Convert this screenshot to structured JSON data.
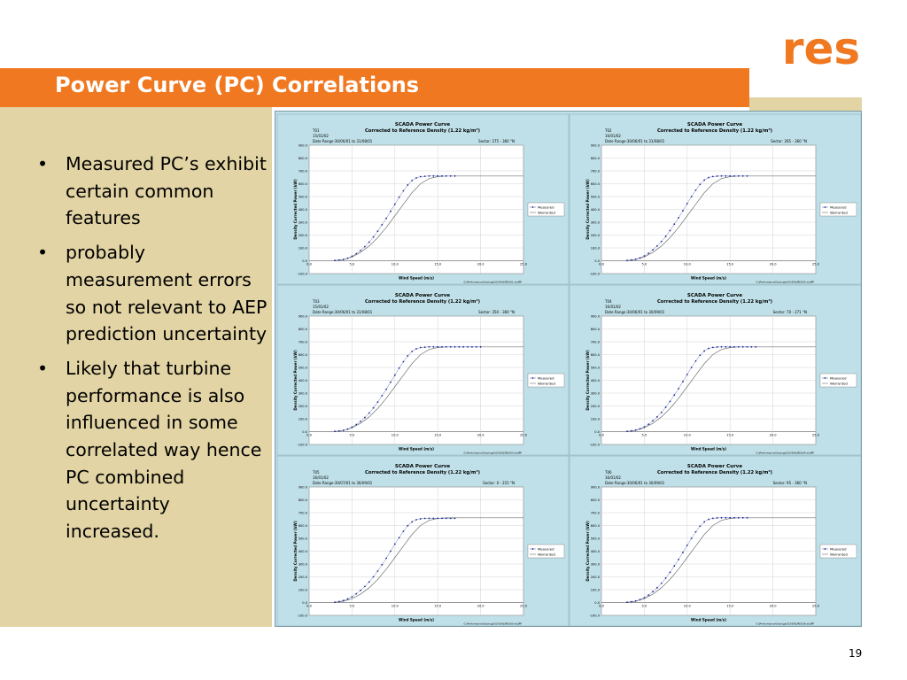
{
  "slide": {
    "title": "Power Curve (PC) Correlations",
    "page_number": "19",
    "logo_text": "res",
    "bullets": [
      "Measured PC’s exhibit certain common features",
      "probably measurement errors so not relevant to AEP prediction uncertainty",
      "Likely that turbine performance is also influenced in some correlated way hence PC combined uncertainty increased."
    ],
    "colors": {
      "accent": "#f07820",
      "tan": "#e2d4a4",
      "panel": "#bfe0e8",
      "plot_bg": "#ffffff"
    }
  },
  "chart_data": [
    {
      "type": "line",
      "title": "SCADA Power Curve",
      "subtitle": "Corrected to Reference Density (1.22 kg/m³)",
      "turbine": "T01",
      "date": "15/01/02",
      "date_range": "Date Range:30/06/01 to 31/08/01",
      "sector": "Sector: 275 - 360 °N",
      "xlabel": "Wind Speed (m/s)",
      "ylabel": "Density Corrected Power (kW)",
      "xlim": [
        0,
        25
      ],
      "ylim": [
        -100,
        900
      ],
      "xticks": [
        "0.0",
        "5.0",
        "10.0",
        "15.0",
        "20.0",
        "25.0"
      ],
      "yticks": [
        "-100.0",
        "0.0",
        "100.0",
        "200.0",
        "300.0",
        "400.0",
        "500.0",
        "600.0",
        "700.0",
        "800.0",
        "900.0"
      ],
      "legend": [
        "Measured",
        "Warranted"
      ],
      "footer": "G:\\Performance\\Savings\\SCADA\\[IRIS\\01-xls]PP",
      "series": [
        {
          "name": "Measured",
          "x": [
            3,
            3.5,
            4,
            4.5,
            5,
            5.5,
            6,
            6.5,
            7,
            7.5,
            8,
            8.5,
            9,
            9.5,
            10,
            10.5,
            11,
            11.5,
            12,
            12.5,
            13,
            13.5,
            14,
            14.5,
            15,
            15.5,
            16,
            16.5,
            17
          ],
          "y": [
            2,
            5,
            10,
            20,
            35,
            55,
            80,
            110,
            145,
            185,
            230,
            280,
            330,
            385,
            440,
            495,
            545,
            590,
            625,
            645,
            655,
            658,
            660,
            660,
            660,
            660,
            660,
            660,
            660
          ]
        },
        {
          "name": "Warranted",
          "x": [
            3,
            4,
            5,
            6,
            7,
            8,
            9,
            10,
            11,
            12,
            13,
            14,
            15,
            16,
            17,
            18,
            19,
            20,
            21,
            22,
            23,
            24,
            25
          ],
          "y": [
            0,
            10,
            30,
            65,
            115,
            180,
            260,
            350,
            440,
            530,
            600,
            640,
            655,
            660,
            660,
            660,
            660,
            660,
            660,
            660,
            660,
            660,
            660
          ]
        }
      ]
    },
    {
      "type": "line",
      "title": "SCADA Power Curve",
      "subtitle": "Corrected to Reference Density (1.22 kg/m³)",
      "turbine": "T02",
      "date": "16/01/02",
      "date_range": "Date Range:30/06/01 to 31/08/01",
      "sector": "Sector: 265 - 360 °N",
      "xlabel": "Wind Speed (m/s)",
      "ylabel": "Density Corrected Power (kW)",
      "xlim": [
        0,
        25
      ],
      "ylim": [
        -100,
        900
      ],
      "xticks": [
        "0.0",
        "5.0",
        "10.0",
        "15.0",
        "20.0",
        "25.0"
      ],
      "yticks": [
        "-100.0",
        "0.0",
        "100.0",
        "200.0",
        "300.0",
        "400.0",
        "500.0",
        "600.0",
        "700.0",
        "800.0",
        "900.0"
      ],
      "legend": [
        "Measured",
        "Warranted"
      ],
      "footer": "G:\\Performance\\Savings\\SCADA\\[IRIS\\02-xls]PP",
      "series": [
        {
          "name": "Measured",
          "x": [
            3,
            3.5,
            4,
            4.5,
            5,
            5.5,
            6,
            6.5,
            7,
            7.5,
            8,
            8.5,
            9,
            9.5,
            10,
            10.5,
            11,
            11.5,
            12,
            12.5,
            13,
            13.5,
            14,
            14.5,
            15,
            15.5,
            16,
            16.5,
            17
          ],
          "y": [
            2,
            6,
            12,
            22,
            38,
            58,
            85,
            115,
            150,
            190,
            235,
            285,
            335,
            390,
            445,
            500,
            550,
            595,
            628,
            648,
            656,
            659,
            660,
            660,
            660,
            660,
            660,
            660,
            660
          ]
        },
        {
          "name": "Warranted",
          "x": [
            3,
            4,
            5,
            6,
            7,
            8,
            9,
            10,
            11,
            12,
            13,
            14,
            15,
            16,
            17,
            18,
            19,
            20,
            21,
            22,
            23,
            24,
            25
          ],
          "y": [
            0,
            10,
            30,
            65,
            115,
            180,
            260,
            350,
            440,
            530,
            600,
            640,
            655,
            660,
            660,
            660,
            660,
            660,
            660,
            660,
            660,
            660,
            660
          ]
        }
      ]
    },
    {
      "type": "line",
      "title": "SCADA Power Curve",
      "subtitle": "Corrected to Reference Density (1.22 kg/m³)",
      "turbine": "T03",
      "date": "15/01/02",
      "date_range": "Date Range:30/06/01 to 31/08/01",
      "sector": "Sector: 350 - 360 °N",
      "xlabel": "Wind Speed (m/s)",
      "ylabel": "Density Corrected Power (kW)",
      "xlim": [
        0,
        25
      ],
      "ylim": [
        -100,
        900
      ],
      "xticks": [
        "0.0",
        "5.0",
        "10.0",
        "15.0",
        "20.0",
        "25.0"
      ],
      "yticks": [
        "-100.0",
        "0.0",
        "100.0",
        "200.0",
        "300.0",
        "400.0",
        "500.0",
        "600.0",
        "700.0",
        "800.0",
        "900.0"
      ],
      "legend": [
        "Measured",
        "Warranted"
      ],
      "footer": "G:\\Performance\\Savings\\SCADA\\[IRIS\\03-xls]PP",
      "series": [
        {
          "name": "Measured",
          "x": [
            3,
            3.5,
            4,
            4.5,
            5,
            5.5,
            6,
            6.5,
            7,
            7.5,
            8,
            8.5,
            9,
            9.5,
            10,
            10.5,
            11,
            11.5,
            12,
            12.5,
            13,
            13.5,
            14,
            14.5,
            15,
            15.5,
            16,
            16.5,
            17,
            17.5,
            18,
            18.5,
            19,
            19.5,
            20
          ],
          "y": [
            2,
            5,
            10,
            20,
            35,
            55,
            80,
            110,
            145,
            185,
            230,
            280,
            330,
            385,
            440,
            495,
            545,
            590,
            625,
            645,
            655,
            658,
            660,
            660,
            660,
            660,
            660,
            660,
            660,
            660,
            660,
            660,
            660,
            660,
            660
          ]
        },
        {
          "name": "Warranted",
          "x": [
            3,
            4,
            5,
            6,
            7,
            8,
            9,
            10,
            11,
            12,
            13,
            14,
            15,
            16,
            17,
            18,
            19,
            20,
            21,
            22,
            23,
            24,
            25
          ],
          "y": [
            0,
            10,
            30,
            65,
            115,
            180,
            260,
            350,
            440,
            530,
            600,
            640,
            655,
            660,
            660,
            660,
            660,
            660,
            660,
            660,
            660,
            660,
            660
          ]
        }
      ]
    },
    {
      "type": "line",
      "title": "SCADA Power Curve",
      "subtitle": "Corrected to Reference Density (1.22 kg/m³)",
      "turbine": "T04",
      "date": "16/01/02",
      "date_range": "Date Range:30/06/01 to 30/09/01",
      "sector": "Sector: 70 - 271 °N",
      "xlabel": "Wind Speed (m/s)",
      "ylabel": "Density Corrected Power (kW)",
      "xlim": [
        0,
        25
      ],
      "ylim": [
        -100,
        900
      ],
      "xticks": [
        "0.0",
        "5.0",
        "10.0",
        "15.0",
        "20.0",
        "25.0"
      ],
      "yticks": [
        "-100.0",
        "0.0",
        "100.0",
        "200.0",
        "300.0",
        "400.0",
        "500.0",
        "600.0",
        "700.0",
        "800.0",
        "900.0"
      ],
      "legend": [
        "Measured",
        "Warranted"
      ],
      "footer": "G:\\Performance\\Savings\\SCADA\\[IRIS\\04-xls]PP",
      "series": [
        {
          "name": "Measured",
          "x": [
            3,
            3.5,
            4,
            4.5,
            5,
            5.5,
            6,
            6.5,
            7,
            7.5,
            8,
            8.5,
            9,
            9.5,
            10,
            10.5,
            11,
            11.5,
            12,
            12.5,
            13,
            13.5,
            14,
            14.5,
            15,
            15.5,
            16,
            16.5,
            17,
            17.5,
            18
          ],
          "y": [
            2,
            6,
            12,
            22,
            38,
            58,
            85,
            115,
            150,
            190,
            235,
            285,
            335,
            390,
            445,
            500,
            550,
            595,
            628,
            648,
            656,
            659,
            660,
            660,
            660,
            660,
            660,
            660,
            660,
            660,
            660
          ]
        },
        {
          "name": "Warranted",
          "x": [
            3,
            4,
            5,
            6,
            7,
            8,
            9,
            10,
            11,
            12,
            13,
            14,
            15,
            16,
            17,
            18,
            19,
            20,
            21,
            22,
            23,
            24,
            25
          ],
          "y": [
            0,
            10,
            30,
            65,
            115,
            180,
            260,
            350,
            440,
            530,
            600,
            640,
            655,
            660,
            660,
            660,
            660,
            660,
            660,
            660,
            660,
            660,
            660
          ]
        }
      ]
    },
    {
      "type": "line",
      "title": "SCADA Power Curve",
      "subtitle": "Corrected to Reference Density (1.22 kg/m³)",
      "turbine": "T05",
      "date": "16/01/02",
      "date_range": "Date Range:30/07/01 to 30/09/01",
      "sector": "Sector: 0 - 215 °N",
      "xlabel": "Wind Speed (m/s)",
      "ylabel": "Density Corrected Power (kW)",
      "xlim": [
        0,
        25
      ],
      "ylim": [
        -100,
        900
      ],
      "xticks": [
        "0.0",
        "5.0",
        "10.0",
        "15.0",
        "20.0",
        "25.0"
      ],
      "yticks": [
        "-100.0",
        "0.0",
        "100.0",
        "200.0",
        "300.0",
        "400.0",
        "500.0",
        "600.0",
        "700.0",
        "800.0",
        "900.0"
      ],
      "legend": [
        "Measured",
        "Warranted"
      ],
      "footer": "G:\\Performance\\Savings\\SCADA\\[IRIS\\05-xls]PP",
      "series": [
        {
          "name": "Measured",
          "x": [
            3,
            3.5,
            4,
            4.5,
            5,
            5.5,
            6,
            6.5,
            7,
            7.5,
            8,
            8.5,
            9,
            9.5,
            10,
            10.5,
            11,
            11.5,
            12,
            12.5,
            13,
            13.5,
            14,
            14.5,
            15,
            15.5,
            16,
            16.5,
            17
          ],
          "y": [
            2,
            8,
            15,
            28,
            45,
            68,
            95,
            125,
            160,
            200,
            245,
            295,
            345,
            400,
            455,
            505,
            555,
            598,
            628,
            645,
            652,
            655,
            656,
            656,
            656,
            656,
            656,
            656,
            656
          ]
        },
        {
          "name": "Warranted",
          "x": [
            3,
            4,
            5,
            6,
            7,
            8,
            9,
            10,
            11,
            12,
            13,
            14,
            15,
            16,
            17,
            18,
            19,
            20,
            21,
            22,
            23,
            24,
            25
          ],
          "y": [
            0,
            10,
            30,
            65,
            115,
            180,
            260,
            350,
            440,
            530,
            600,
            640,
            655,
            660,
            660,
            660,
            660,
            660,
            660,
            660,
            660,
            660,
            660
          ]
        }
      ]
    },
    {
      "type": "line",
      "title": "SCADA Power Curve",
      "subtitle": "Corrected to Reference Density (1.22 kg/m³)",
      "turbine": "T06",
      "date": "16/01/02",
      "date_range": "Date Range:30/06/01 to 30/09/01",
      "sector": "Sector: 95 - 360 °N",
      "xlabel": "Wind Speed (m/s)",
      "ylabel": "Density Corrected Power (kW)",
      "xlim": [
        0,
        25
      ],
      "ylim": [
        -100,
        900
      ],
      "xticks": [
        "0.0",
        "5.0",
        "10.0",
        "15.0",
        "20.0",
        "25.0"
      ],
      "yticks": [
        "-100.0",
        "0.0",
        "100.0",
        "200.0",
        "300.0",
        "400.0",
        "500.0",
        "600.0",
        "700.0",
        "800.0",
        "900.0"
      ],
      "legend": [
        "Measured",
        "Warranted"
      ],
      "footer": "G:\\Performance\\Savings\\SCADA\\[IRIS\\06-xls]PP",
      "series": [
        {
          "name": "Measured",
          "x": [
            3,
            3.5,
            4,
            4.5,
            5,
            5.5,
            6,
            6.5,
            7,
            7.5,
            8,
            8.5,
            9,
            9.5,
            10,
            10.5,
            11,
            11.5,
            12,
            12.5,
            13,
            13.5,
            14,
            14.5,
            15,
            15.5,
            16,
            16.5,
            17
          ],
          "y": [
            2,
            6,
            12,
            22,
            38,
            58,
            85,
            115,
            150,
            190,
            235,
            285,
            335,
            390,
            445,
            500,
            550,
            595,
            628,
            648,
            656,
            659,
            660,
            660,
            660,
            660,
            660,
            660,
            660
          ]
        },
        {
          "name": "Warranted",
          "x": [
            3,
            4,
            5,
            6,
            7,
            8,
            9,
            10,
            11,
            12,
            13,
            14,
            15,
            16,
            17,
            18,
            19,
            20,
            21,
            22,
            23,
            24,
            25
          ],
          "y": [
            0,
            10,
            30,
            65,
            115,
            180,
            260,
            350,
            440,
            530,
            600,
            640,
            655,
            660,
            660,
            660,
            660,
            660,
            660,
            660,
            660,
            660,
            660
          ]
        }
      ]
    }
  ]
}
